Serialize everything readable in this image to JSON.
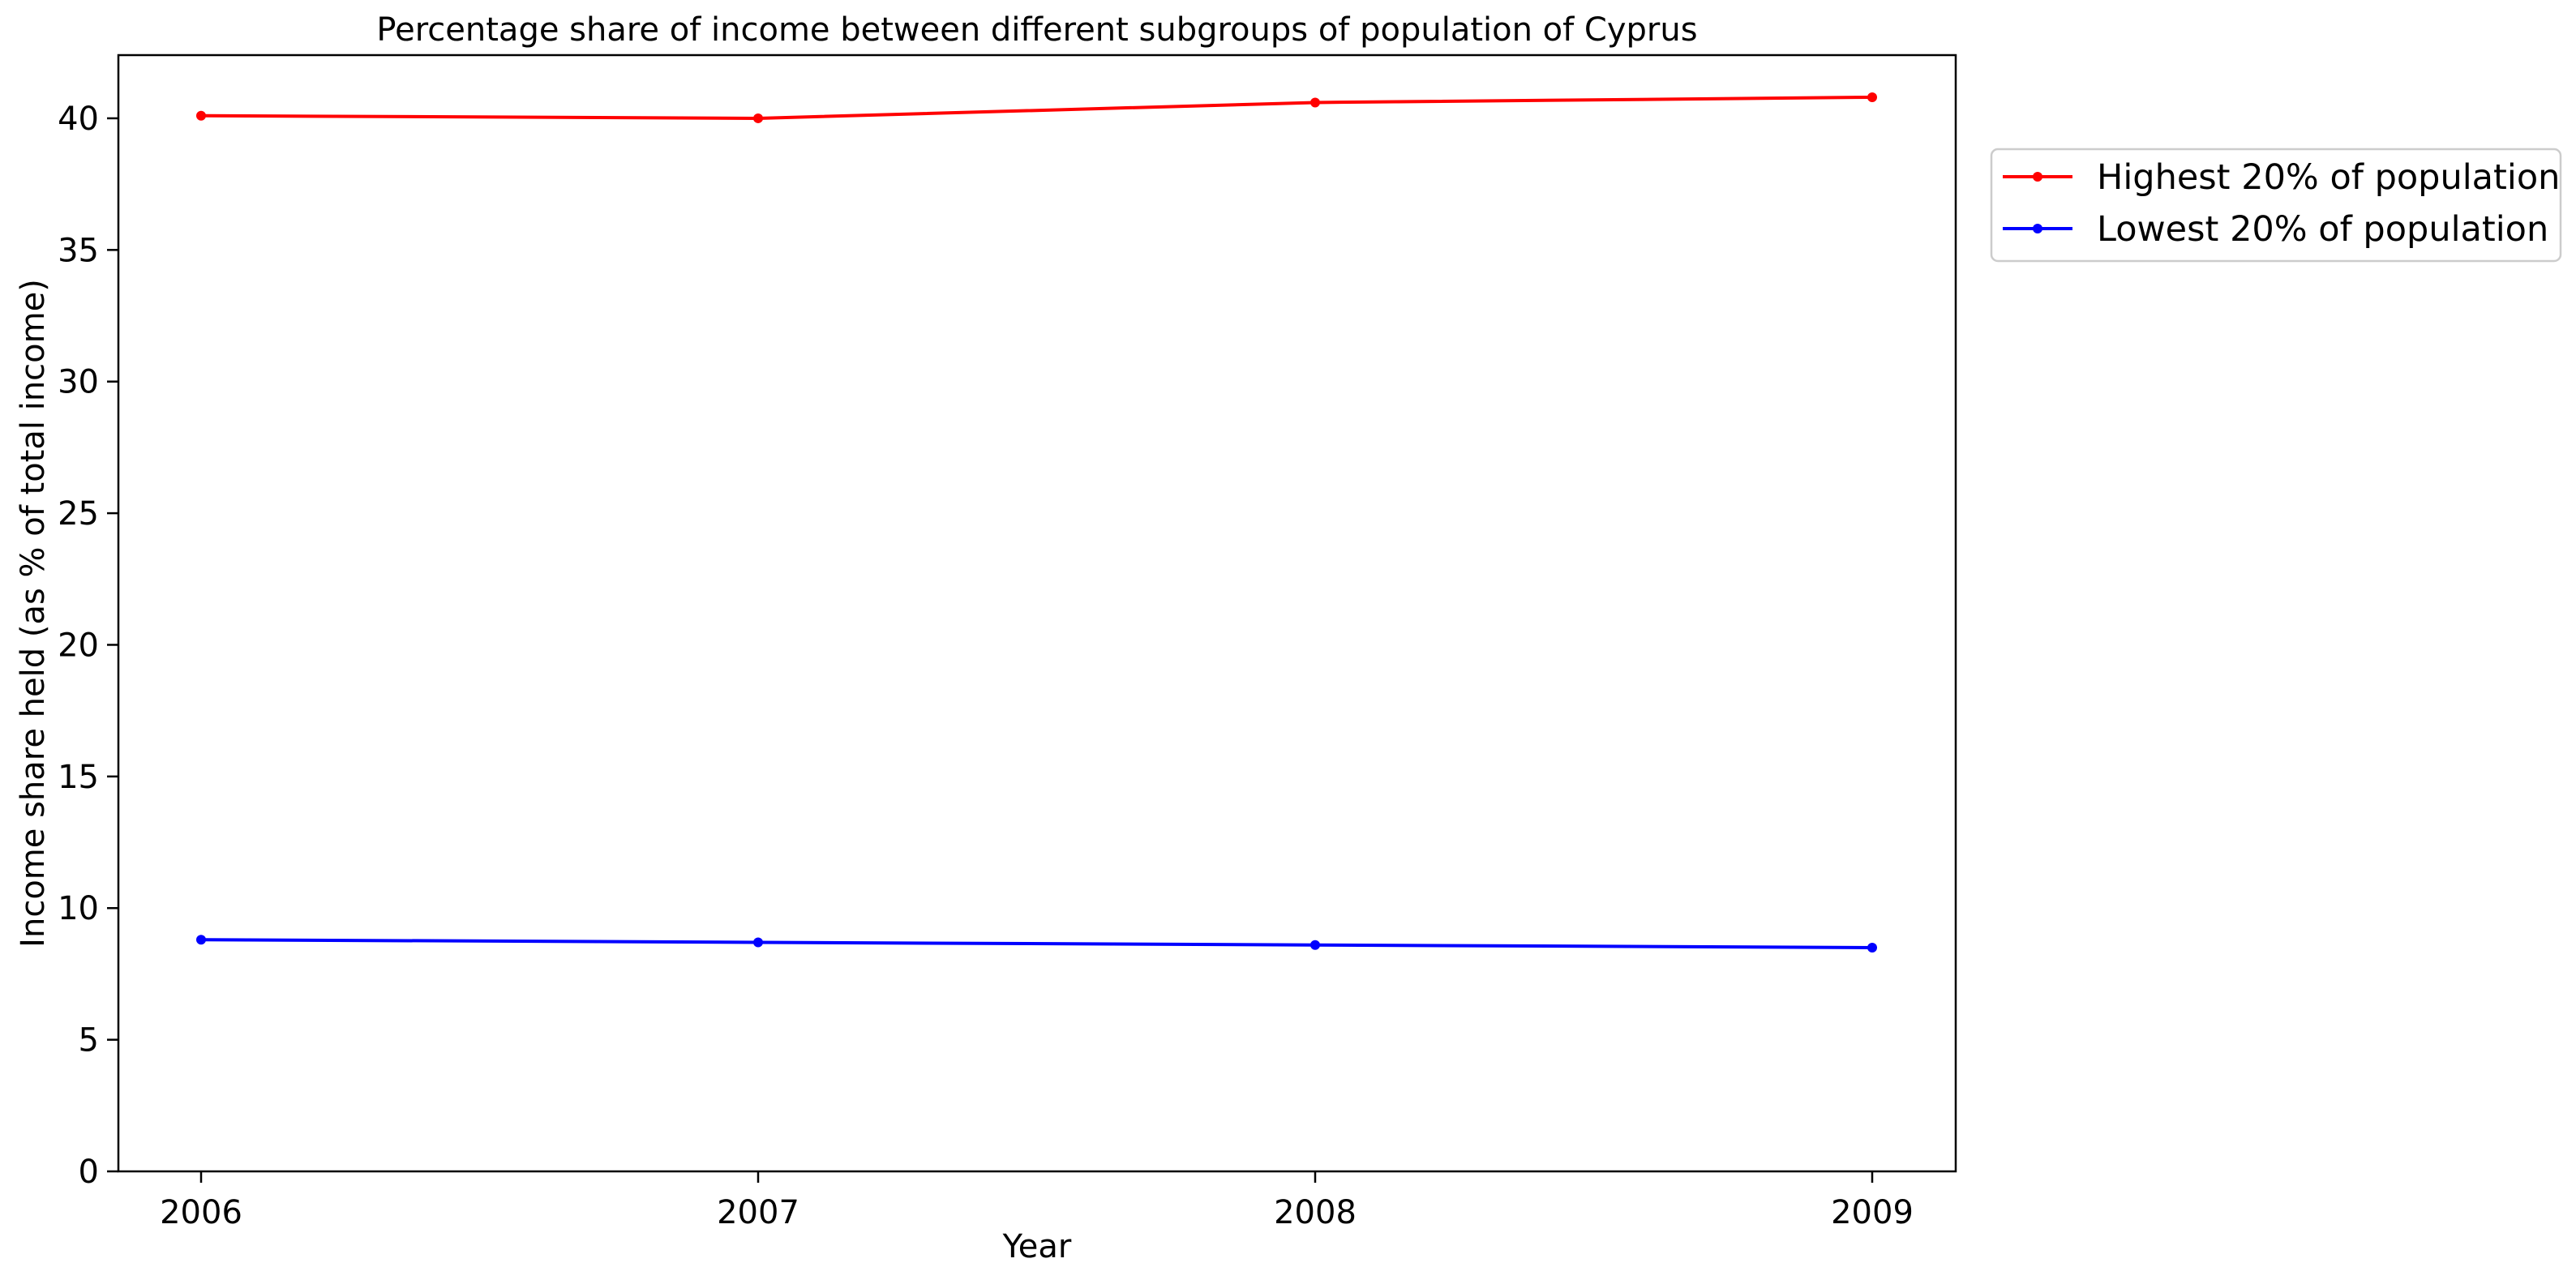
{
  "chart_data": {
    "type": "line",
    "title": "Percentage share of income between different subgroups of population of Cyprus",
    "xlabel": "Year",
    "ylabel": "Income share held (as % of total income)",
    "categories": [
      "2006",
      "2007",
      "2008",
      "2009"
    ],
    "yticks": [
      0,
      5,
      10,
      15,
      20,
      25,
      30,
      35,
      40
    ],
    "ylim": [
      0,
      42.4
    ],
    "grid": false,
    "legend_position": "outside-top-right",
    "series": [
      {
        "name": "Highest 20% of population",
        "color": "#ff0000",
        "values": [
          40.1,
          40.0,
          40.6,
          40.8
        ]
      },
      {
        "name": "Lowest 20% of population",
        "color": "#0000ff",
        "values": [
          8.8,
          8.7,
          8.6,
          8.5
        ]
      }
    ]
  }
}
